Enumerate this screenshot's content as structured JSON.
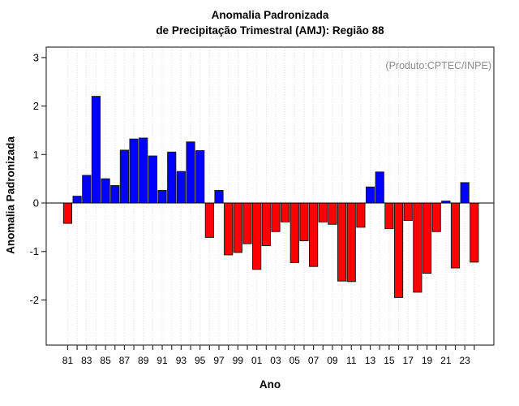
{
  "header": {
    "title_line1": "Anomalia Padronizada",
    "title_line2": "de Precipitação Trimestral (AMJ): Região 88"
  },
  "axes": {
    "xlabel": "Ano",
    "ylabel": "Anomalia Padronizada"
  },
  "annotation": {
    "produto": "(Produto:CPTEC/INPE)"
  },
  "colors": {
    "positive": "#0000ff",
    "negative": "#ff0000",
    "bar_border": "#1a1a1a",
    "gridline": "#d9d9d9",
    "axis": "#333333",
    "produto_text": "#8c8c8c"
  },
  "chart_data": {
    "type": "bar",
    "title": "Anomalia Padronizada de Precipitação Trimestral (AMJ): Região 88",
    "xlabel": "Ano",
    "ylabel": "Anomalia Padronizada",
    "annotation": "(Produto:CPTEC/INPE)",
    "ylim": [
      -2.95,
      3.22
    ],
    "yticks": [
      3,
      2,
      1,
      0,
      -1,
      -2
    ],
    "grid": "vertical-dotted-per-year",
    "legend": "none",
    "color_rule": "blue if value >= 0, red if value < 0",
    "categories": [
      "81",
      "82",
      "83",
      "84",
      "85",
      "86",
      "87",
      "88",
      "89",
      "90",
      "91",
      "92",
      "93",
      "94",
      "95",
      "96",
      "97",
      "98",
      "99",
      "00",
      "01",
      "02",
      "03",
      "04",
      "05",
      "06",
      "07",
      "08",
      "09",
      "10",
      "11",
      "12",
      "13",
      "14",
      "15",
      "16",
      "17",
      "18",
      "19",
      "20",
      "21",
      "22",
      "23",
      "24"
    ],
    "labeled_ticks": [
      "81",
      "83",
      "85",
      "87",
      "89",
      "91",
      "93",
      "95",
      "97",
      "99",
      "01",
      "03",
      "05",
      "07",
      "09",
      "11",
      "13",
      "15",
      "17",
      "19",
      "21",
      "23"
    ],
    "values": [
      -0.42,
      0.14,
      0.57,
      2.2,
      0.5,
      0.36,
      1.09,
      1.32,
      1.34,
      0.97,
      0.26,
      1.05,
      0.65,
      1.26,
      1.08,
      -0.71,
      0.26,
      -1.07,
      -1.02,
      -0.84,
      -1.37,
      -0.88,
      -0.59,
      -0.39,
      -1.23,
      -0.78,
      -1.31,
      -0.39,
      -0.44,
      -1.61,
      -1.62,
      -0.5,
      0.33,
      0.64,
      -0.53,
      -1.95,
      -0.36,
      -1.84,
      -1.45,
      -0.59,
      0.04,
      -1.34,
      0.42,
      -1.22
    ]
  }
}
